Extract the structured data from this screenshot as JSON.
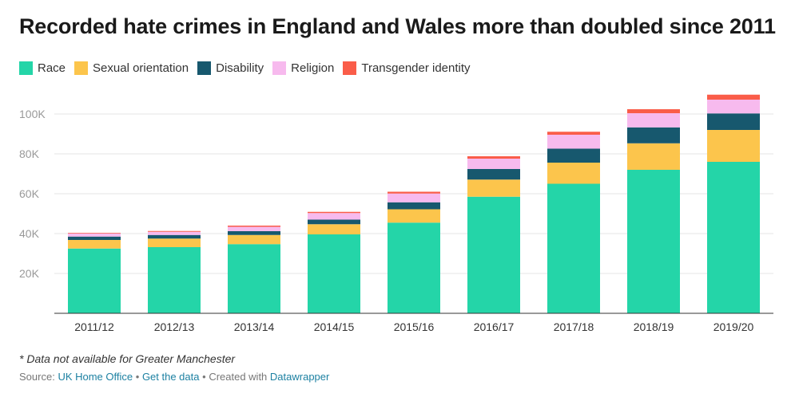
{
  "title": "Recorded hate crimes in England and Wales more than doubled since 2011",
  "footnote": "* Data not available for Greater Manchester",
  "source": {
    "prefix": "Source:",
    "source_link": "UK Home Office",
    "get_data": "Get the data",
    "created_with": "Created with",
    "tool_link": "Datawrapper",
    "separator": "•"
  },
  "chart_data": {
    "type": "bar",
    "stacked": true,
    "categories": [
      "2011/12",
      "2012/13",
      "2013/14",
      "2014/15",
      "2015/16",
      "2016/17",
      "2017/18",
      "2018/19",
      "2019/20"
    ],
    "series": [
      {
        "name": "Race",
        "color": "#24d5a8",
        "values": [
          32500,
          33200,
          34700,
          39600,
          45500,
          58500,
          65000,
          72000,
          76000
        ]
      },
      {
        "name": "Sexual orientation",
        "color": "#fcc54c",
        "values": [
          4300,
          4300,
          4600,
          5100,
          6700,
          8600,
          10600,
          13300,
          16000
        ]
      },
      {
        "name": "Disability",
        "color": "#17586e",
        "values": [
          1700,
          1800,
          1900,
          2300,
          3500,
          5300,
          7000,
          8000,
          8300
        ]
      },
      {
        "name": "Religion",
        "color": "#f7baee",
        "values": [
          1600,
          1600,
          2200,
          3300,
          4400,
          5200,
          7000,
          7100,
          6900
        ]
      },
      {
        "name": "Transgender identity",
        "color": "#fa5d49",
        "values": [
          300,
          400,
          600,
          600,
          900,
          1200,
          1500,
          2000,
          2500
        ]
      }
    ],
    "y_ticks": [
      20000,
      40000,
      60000,
      80000,
      100000
    ],
    "y_tick_labels": [
      "20K",
      "40K",
      "60K",
      "80K",
      "100K"
    ],
    "ylim": [
      0,
      110000
    ],
    "grid": true,
    "legend_position": "top-left"
  }
}
